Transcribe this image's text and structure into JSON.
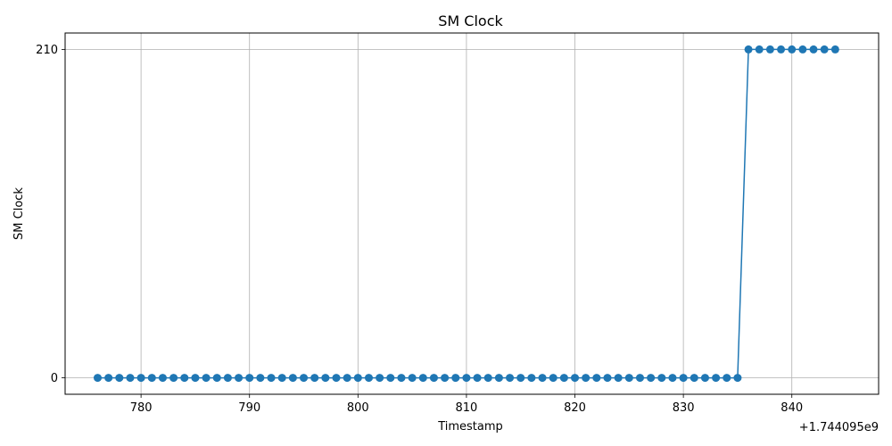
{
  "chart_data": {
    "type": "line",
    "title": "SM Clock",
    "xlabel": "Timestamp",
    "ylabel": "SM Clock",
    "x_offset_label": "+1.744095e9",
    "x_ticks": [
      "780",
      "790",
      "800",
      "810",
      "820",
      "830",
      "840"
    ],
    "y_ticks": [
      "0",
      "210"
    ],
    "xlim": [
      773,
      848
    ],
    "ylim": [
      -10.5,
      220.5
    ],
    "grid": true,
    "marker": "circle",
    "color": "#1f77b4",
    "series": [
      {
        "x": [
          776,
          777,
          778,
          779,
          780,
          781,
          782,
          783,
          784,
          785,
          786,
          787,
          788,
          789,
          790,
          791,
          792,
          793,
          794,
          795,
          796,
          797,
          798,
          799,
          800,
          801,
          802,
          803,
          804,
          805,
          806,
          807,
          808,
          809,
          810,
          811,
          812,
          813,
          814,
          815,
          816,
          817,
          818,
          819,
          820,
          821,
          822,
          823,
          824,
          825,
          826,
          827,
          828,
          829,
          830,
          831,
          832,
          833,
          834,
          835,
          836,
          837,
          838,
          839,
          840,
          841,
          842,
          843,
          844
        ],
        "y": [
          0,
          0,
          0,
          0,
          0,
          0,
          0,
          0,
          0,
          0,
          0,
          0,
          0,
          0,
          0,
          0,
          0,
          0,
          0,
          0,
          0,
          0,
          0,
          0,
          0,
          0,
          0,
          0,
          0,
          0,
          0,
          0,
          0,
          0,
          0,
          0,
          0,
          0,
          0,
          0,
          0,
          0,
          0,
          0,
          0,
          0,
          0,
          0,
          0,
          0,
          0,
          0,
          0,
          0,
          0,
          0,
          0,
          0,
          0,
          0,
          210,
          210,
          210,
          210,
          210,
          210,
          210,
          210,
          210
        ]
      }
    ]
  }
}
